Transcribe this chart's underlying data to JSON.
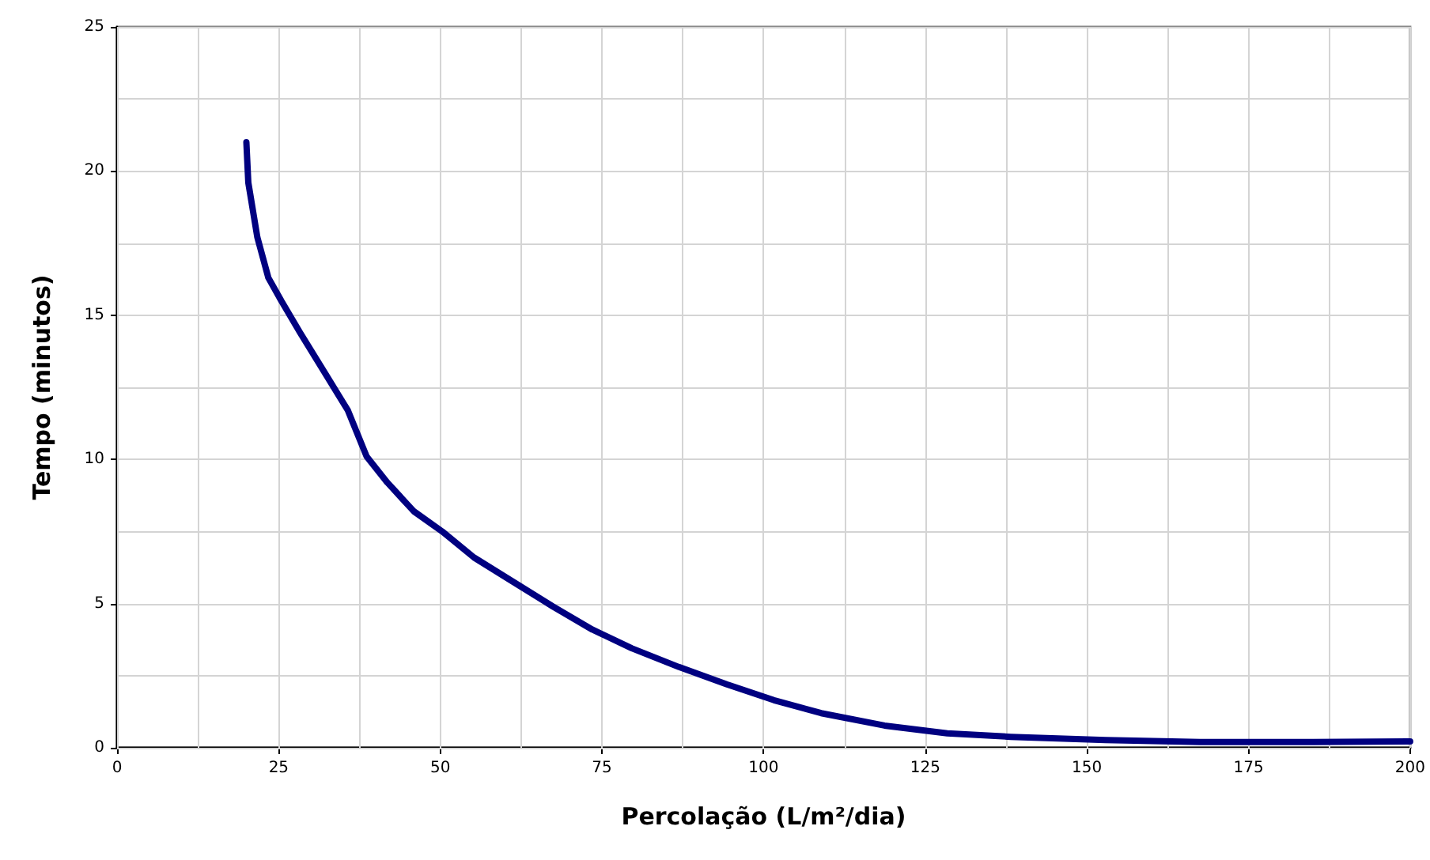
{
  "chart_data": {
    "type": "line",
    "xlabel": "Percolação (L/m²/dia)",
    "ylabel": "Tempo (minutos)",
    "x": [
      20,
      20.3,
      21.7,
      23.4,
      25.4,
      28.3,
      32,
      35.7,
      38.6,
      41.8,
      45.9,
      50.3,
      55.2,
      61.3,
      67.4,
      73.5,
      79.6,
      86.9,
      94.3,
      101.6,
      108.9,
      118.7,
      128.4,
      138.2,
      152.9,
      167.5,
      185,
      200
    ],
    "series": [
      {
        "color": "#000080",
        "values": [
          21,
          19.6,
          17.7,
          16.3,
          15.5,
          14.4,
          13.05,
          11.7,
          10.1,
          9.2,
          8.2,
          7.5,
          6.6,
          5.75,
          4.9,
          4.1,
          3.45,
          2.8,
          2.2,
          1.65,
          1.2,
          0.77,
          0.5,
          0.38,
          0.27,
          0.2,
          0.2,
          0.22
        ]
      }
    ],
    "xlim": [
      0,
      200
    ],
    "ylim": [
      0,
      25
    ],
    "xticks": [
      0,
      {
        "value": 12.5,
        "label": null
      },
      25,
      {
        "value": 37.5,
        "label": null
      },
      50,
      {
        "value": 62.5,
        "label": null
      },
      75,
      {
        "value": 87.5,
        "label": null
      },
      100,
      {
        "value": 112.5,
        "label": null
      },
      125,
      {
        "value": 137.5,
        "label": null
      },
      150,
      {
        "value": 162.5,
        "label": null
      },
      175,
      {
        "value": 187.5,
        "label": null
      },
      200
    ],
    "yticks": [
      0,
      {
        "value": 2.5,
        "label": null
      },
      5,
      {
        "value": 7.5,
        "label": null
      },
      10,
      {
        "value": 12.5,
        "label": null
      },
      15,
      {
        "value": 17.5,
        "label": null
      },
      20,
      {
        "value": 22.5,
        "label": null
      },
      25
    ],
    "grid": true,
    "marker": "none",
    "line_style": "solid"
  }
}
